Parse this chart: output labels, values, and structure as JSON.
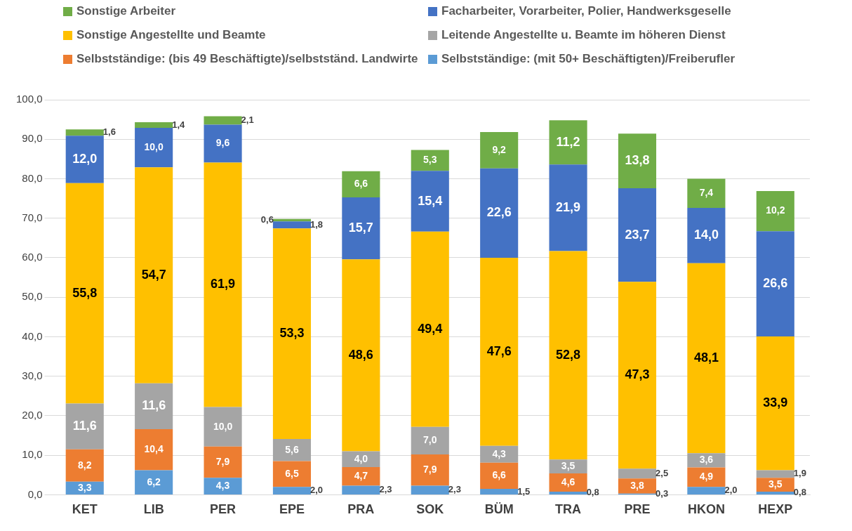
{
  "chart_data": {
    "type": "bar",
    "stacked": true,
    "grid": "y",
    "legend": "top",
    "categories": [
      "KET",
      "LIB",
      "PER",
      "EPE",
      "PRA",
      "SOK",
      "BÜM",
      "TRA",
      "PRE",
      "HKON",
      "HEXP"
    ],
    "ylim": [
      0,
      100
    ],
    "yticks": [
      {
        "value": 0,
        "label": "0,0"
      },
      {
        "value": 10,
        "label": "10,0"
      },
      {
        "value": 20,
        "label": "20,0"
      },
      {
        "value": 30,
        "label": "30,0"
      },
      {
        "value": 40,
        "label": "40,0"
      },
      {
        "value": 50,
        "label": "50,0"
      },
      {
        "value": 60,
        "label": "60,0"
      },
      {
        "value": 70,
        "label": "70,0"
      },
      {
        "value": 80,
        "label": "80,0"
      },
      {
        "value": 90,
        "label": "90,0"
      },
      {
        "value": 100,
        "label": "100,0"
      }
    ],
    "series": [
      {
        "name": "Selbstständige:  (mit 50+ Beschäftigten)/Freiberufler",
        "color": "#5b9bd5",
        "values": [
          3.3,
          6.2,
          4.3,
          2.0,
          2.3,
          2.3,
          1.5,
          0.8,
          0.3,
          2.0,
          0.8
        ],
        "value_labels": [
          "3,3",
          "6,2",
          "4,3",
          "2,0",
          "2,3",
          "2,3",
          "1,5",
          "0,8",
          "0,3",
          "2,0",
          "0,8"
        ]
      },
      {
        "name": "Selbstständige:  (bis  49 Beschäftigte)/selbstständ. Landwirte",
        "color": "#ed7d31",
        "values": [
          8.2,
          10.4,
          7.9,
          6.5,
          4.7,
          7.9,
          6.6,
          4.6,
          3.8,
          4.9,
          3.5
        ],
        "value_labels": [
          "8,2",
          "10,4",
          "7,9",
          "6,5",
          "4,7",
          "7,9",
          "6,6",
          "4,6",
          "3,8",
          "4,9",
          "3,5"
        ]
      },
      {
        "name": "Leitende Angestellte u. Beamte im höheren Dienst",
        "color": "#a5a5a5",
        "values": [
          11.6,
          11.6,
          10.0,
          5.6,
          4.0,
          7.0,
          4.3,
          3.5,
          2.5,
          3.6,
          1.9
        ],
        "value_labels": [
          "11,6",
          "11,6",
          "10,0",
          "5,6",
          "4,0",
          "7,0",
          "4,3",
          "3,5",
          "2,5",
          "3,6",
          "1,9"
        ]
      },
      {
        "name": "Sonstige Angestellte und Beamte",
        "color": "#ffc000",
        "values": [
          55.8,
          54.7,
          61.9,
          53.3,
          48.6,
          49.4,
          47.6,
          52.8,
          47.3,
          48.1,
          33.9
        ],
        "value_labels": [
          "55,8",
          "54,7",
          "61,9",
          "53,3",
          "48,6",
          "49,4",
          "47,6",
          "52,8",
          "47,3",
          "48,1",
          "33,9"
        ]
      },
      {
        "name": "Facharbeiter, Vorarbeiter, Polier, Handwerksgeselle",
        "color": "#4472c4",
        "values": [
          12.0,
          10.0,
          9.6,
          1.8,
          15.7,
          15.4,
          22.6,
          21.9,
          23.7,
          14.0,
          26.6
        ],
        "value_labels": [
          "12,0",
          "10,0",
          "9,6",
          "1,8",
          "15,7",
          "15,4",
          "22,6",
          "21,9",
          "23,7",
          "14,0",
          "26,6"
        ]
      },
      {
        "name": "Sonstige Arbeiter",
        "color": "#70ad47",
        "values": [
          1.6,
          1.4,
          2.1,
          0.6,
          6.6,
          5.3,
          9.2,
          11.2,
          13.8,
          7.4,
          10.2
        ],
        "value_labels": [
          "1,6",
          "1,4",
          "2,1",
          "0,6",
          "6,6",
          "5,3",
          "9,2",
          "11,2",
          "13,8",
          "7,4",
          "10,2"
        ]
      }
    ]
  }
}
